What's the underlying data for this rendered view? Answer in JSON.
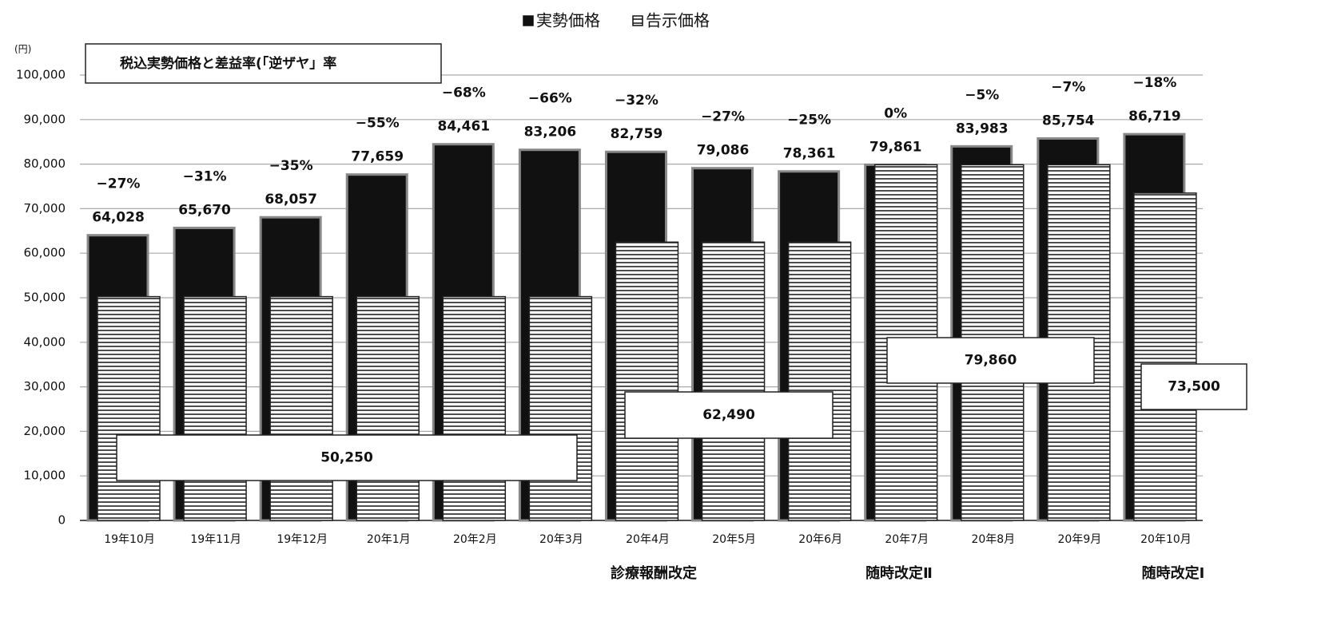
{
  "chart_data": {
    "type": "bar",
    "legend_position": "top",
    "unit_label": "(円)",
    "box_title": "税込実勢価格と差益率(「逆ザヤ」率",
    "categories": [
      "19年10月",
      "19年11月",
      "19年12月",
      "20年1月",
      "20年2月",
      "20年3月",
      "20年4月",
      "20年5月",
      "20年6月",
      "20年7月",
      "20年8月",
      "20年9月",
      "20年10月"
    ],
    "series": [
      {
        "name": "実勢価格",
        "color": "#111111",
        "pattern": "solid",
        "values": [
          64028,
          65670,
          68057,
          77659,
          84461,
          83206,
          82759,
          79086,
          78361,
          79861,
          83983,
          85754,
          86719
        ],
        "value_labels": [
          "64,028",
          "65,670",
          "68,057",
          "77,659",
          "84,461",
          "83,206",
          "82,759",
          "79,086",
          "78,361",
          "79,861",
          "83,983",
          "85,754",
          "86,719"
        ]
      },
      {
        "name": "告示価格",
        "color": "#111111",
        "pattern": "horizontal-stripes",
        "values": [
          50250,
          50250,
          50250,
          50250,
          50250,
          50250,
          62490,
          62490,
          62490,
          79860,
          79860,
          79860,
          73500
        ]
      }
    ],
    "rate_labels": [
      "−27%",
      "−31%",
      "−35%",
      "−55%",
      "−68%",
      "−66%",
      "−32%",
      "−27%",
      "−25%",
      "0%",
      "−5%",
      "−7%",
      "−18%"
    ],
    "annotations": [
      "50,250",
      "62,490",
      "79,860",
      "73,500"
    ],
    "notes": [
      "診療報酬改定",
      "随時改定Ⅱ",
      "随時改定Ⅰ"
    ],
    "ylim": [
      0,
      100000
    ],
    "yticks": [
      0,
      {
        "value": 10000,
        "label": "10,000"
      },
      {
        "value": 20000,
        "label": "20,000"
      },
      {
        "value": 30000,
        "label": "30,000"
      },
      {
        "value": 40000,
        "label": "40,000"
      },
      {
        "value": 50000,
        "label": "50,000"
      },
      {
        "value": 60000,
        "label": "60,000"
      },
      {
        "value": 70000,
        "label": "70,000"
      },
      {
        "value": 80000,
        "label": "80,000"
      },
      {
        "value": 90000,
        "label": "90,000"
      },
      {
        "value": 100000,
        "label": "100,000"
      }
    ],
    "grid": true
  }
}
